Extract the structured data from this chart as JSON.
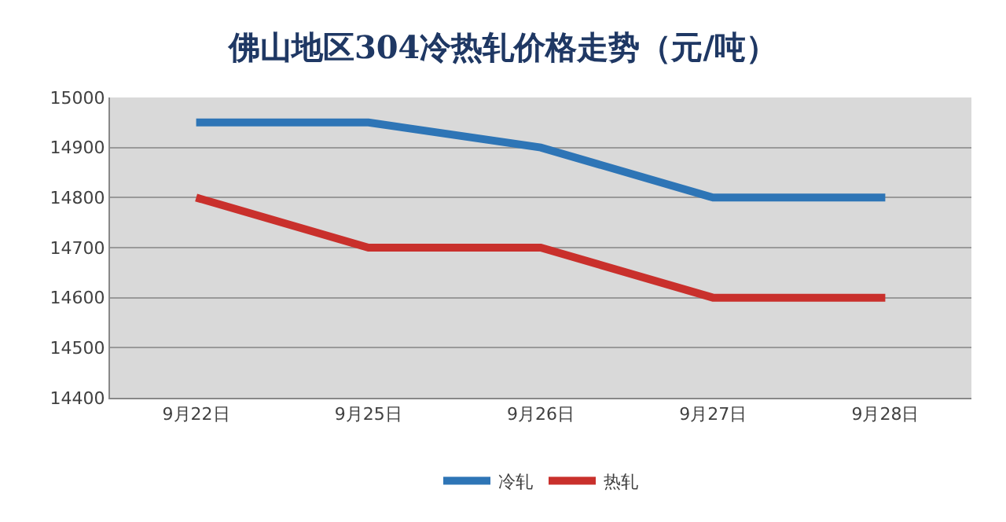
{
  "chart_data": {
    "type": "line",
    "title": "佛山地区304冷热轧价格走势（元/吨）",
    "categories": [
      "9月22日",
      "9月25日",
      "9月26日",
      "9月27日",
      "9月28日"
    ],
    "series": [
      {
        "name": "冷轧",
        "color": "#2e75b6",
        "values": [
          14950,
          14950,
          14900,
          14800,
          14800
        ]
      },
      {
        "name": "热轧",
        "color": "#c9302c",
        "values": [
          14800,
          14700,
          14700,
          14600,
          14600
        ]
      }
    ],
    "ylim": [
      14400,
      15000
    ],
    "yticks": [
      14400,
      14500,
      14600,
      14700,
      14800,
      14900,
      15000
    ],
    "grid": "y",
    "legend": "bottom",
    "marker": "none",
    "line_style": "solid"
  }
}
